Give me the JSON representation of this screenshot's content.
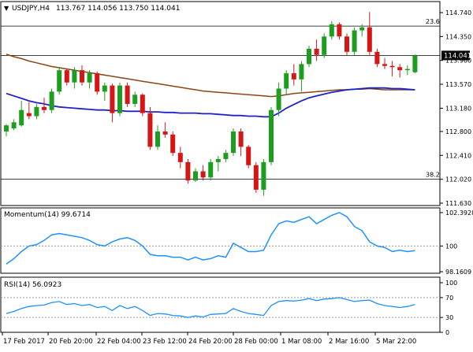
{
  "header": {
    "symbol_label": "USDJPY,H4",
    "ohlc_label": "113.767 114.056 113.750 114.041"
  },
  "momentum_label": "Momentum(14) 99.6714",
  "rsi_label": "RSI(14) 56.0923",
  "colors": {
    "bull": "#1e9e1e",
    "bear": "#d41616",
    "ma_fast": "#1e22c8",
    "ma_slow": "#8b4513",
    "momentum": "#1e90ff",
    "rsi": "#1e90ff",
    "grid": "#000000"
  },
  "chart_data": [
    {
      "type": "candlestick",
      "ylim": [
        111.63,
        114.74
      ],
      "y_ticks": [
        "114.740",
        "114.350",
        "113.960",
        "113.570",
        "113.180",
        "112.800",
        "112.410",
        "112.020",
        "111.630"
      ],
      "current_price": "114.041",
      "current_price_value": 114.041,
      "fibo_levels": [
        {
          "label": "23.6",
          "value": 114.52
        },
        {
          "label": "38.2",
          "value": 112.02
        }
      ],
      "x_labels": [
        "17 Feb 2017",
        "20 Feb 20:00",
        "22 Feb 04:00",
        "23 Feb 12:00",
        "24 Feb 20:00",
        "28 Feb 00:00",
        "1 Mar 08:00",
        "2 Mar 16:00",
        "5 Mar 22:00"
      ],
      "candles": [
        [
          112.8,
          112.92,
          112.72,
          112.9
        ],
        [
          112.85,
          113.0,
          112.82,
          112.95
        ],
        [
          112.9,
          113.3,
          112.88,
          113.15
        ],
        [
          113.1,
          113.28,
          113.0,
          113.05
        ],
        [
          113.05,
          113.25,
          113.0,
          113.2
        ],
        [
          113.2,
          113.35,
          113.1,
          113.15
        ],
        [
          113.15,
          113.5,
          113.1,
          113.45
        ],
        [
          113.45,
          113.85,
          113.4,
          113.8
        ],
        [
          113.8,
          113.82,
          113.55,
          113.6
        ],
        [
          113.6,
          113.85,
          113.5,
          113.8
        ],
        [
          113.8,
          113.88,
          113.55,
          113.6
        ],
        [
          113.6,
          113.8,
          113.5,
          113.75
        ],
        [
          113.75,
          113.78,
          113.4,
          113.45
        ],
        [
          113.45,
          113.6,
          113.3,
          113.55
        ],
        [
          113.55,
          113.58,
          112.95,
          113.1
        ],
        [
          113.1,
          113.6,
          113.05,
          113.55
        ],
        [
          113.55,
          113.6,
          113.2,
          113.25
        ],
        [
          113.25,
          113.45,
          113.2,
          113.4
        ],
        [
          113.4,
          113.42,
          113.05,
          113.1
        ],
        [
          113.1,
          113.2,
          112.5,
          112.55
        ],
        [
          112.55,
          112.9,
          112.5,
          112.8
        ],
        [
          112.8,
          112.95,
          112.7,
          112.75
        ],
        [
          112.75,
          112.8,
          112.4,
          112.45
        ],
        [
          112.45,
          112.55,
          112.2,
          112.3
        ],
        [
          112.3,
          112.35,
          111.95,
          112.0
        ],
        [
          112.0,
          112.2,
          111.98,
          112.15
        ],
        [
          112.15,
          112.25,
          112.0,
          112.05
        ],
        [
          112.05,
          112.35,
          112.0,
          112.3
        ],
        [
          112.3,
          112.4,
          112.15,
          112.35
        ],
        [
          112.35,
          112.5,
          112.3,
          112.45
        ],
        [
          112.45,
          112.85,
          112.4,
          112.8
        ],
        [
          112.8,
          112.85,
          112.4,
          112.55
        ],
        [
          112.55,
          112.58,
          112.2,
          112.25
        ],
        [
          112.25,
          112.3,
          111.8,
          111.85
        ],
        [
          111.85,
          112.35,
          111.75,
          112.3
        ],
        [
          112.3,
          113.2,
          112.25,
          113.15
        ],
        [
          113.15,
          113.6,
          113.05,
          113.5
        ],
        [
          113.5,
          113.8,
          113.4,
          113.75
        ],
        [
          113.75,
          113.9,
          113.55,
          113.65
        ],
        [
          113.65,
          113.95,
          113.45,
          113.9
        ],
        [
          113.9,
          114.2,
          113.85,
          114.15
        ],
        [
          114.15,
          114.3,
          113.95,
          114.05
        ],
        [
          114.05,
          114.4,
          114.0,
          114.35
        ],
        [
          114.35,
          114.6,
          114.3,
          114.55
        ],
        [
          114.55,
          114.58,
          114.3,
          114.35
        ],
        [
          114.35,
          114.4,
          114.05,
          114.1
        ],
        [
          114.1,
          114.5,
          114.05,
          114.45
        ],
        [
          114.45,
          114.55,
          114.35,
          114.5
        ],
        [
          114.5,
          114.75,
          114.05,
          114.1
        ],
        [
          114.1,
          114.15,
          113.85,
          113.9
        ],
        [
          113.9,
          114.0,
          113.82,
          113.87
        ],
        [
          113.87,
          113.95,
          113.7,
          113.85
        ],
        [
          113.85,
          113.9,
          113.68,
          113.8
        ],
        [
          113.8,
          113.88,
          113.72,
          113.82
        ],
        [
          113.767,
          114.056,
          113.75,
          114.041
        ]
      ],
      "ma_slow": [
        114.06,
        114.02,
        113.99,
        113.95,
        113.92,
        113.89,
        113.86,
        113.84,
        113.82,
        113.8,
        113.78,
        113.76,
        113.74,
        113.72,
        113.7,
        113.68,
        113.66,
        113.64,
        113.62,
        113.6,
        113.58,
        113.56,
        113.54,
        113.52,
        113.5,
        113.48,
        113.46,
        113.45,
        113.44,
        113.43,
        113.42,
        113.41,
        113.4,
        113.39,
        113.38,
        113.37,
        113.38,
        113.4,
        113.42,
        113.43,
        113.44,
        113.45,
        113.46,
        113.47,
        113.48,
        113.48,
        113.49,
        113.49,
        113.5,
        113.49,
        113.48,
        113.48,
        113.48,
        113.48,
        113.48
      ],
      "ma_fast": [
        113.42,
        113.38,
        113.34,
        113.3,
        113.27,
        113.25,
        113.22,
        113.2,
        113.19,
        113.18,
        113.17,
        113.16,
        113.15,
        113.15,
        113.14,
        113.14,
        113.13,
        113.13,
        113.13,
        113.12,
        113.12,
        113.11,
        113.11,
        113.1,
        113.1,
        113.1,
        113.09,
        113.09,
        113.08,
        113.07,
        113.06,
        113.06,
        113.05,
        113.05,
        113.04,
        113.04,
        113.1,
        113.18,
        113.24,
        113.3,
        113.35,
        113.38,
        113.41,
        113.44,
        113.46,
        113.48,
        113.49,
        113.5,
        113.51,
        113.51,
        113.51,
        113.5,
        113.5,
        113.49,
        113.48
      ]
    },
    {
      "type": "line",
      "ylim": [
        98.1609,
        102.3928
      ],
      "y_ticks": [
        "102.3928",
        "100",
        "98.1609"
      ],
      "reference_value": 100,
      "values": [
        98.7,
        99.1,
        99.6,
        100.0,
        100.1,
        100.4,
        100.8,
        100.9,
        100.8,
        100.7,
        100.6,
        100.4,
        100.1,
        100.0,
        100.3,
        100.5,
        100.6,
        100.4,
        100.0,
        99.4,
        99.3,
        99.3,
        99.2,
        99.2,
        99.0,
        99.2,
        99.0,
        99.1,
        99.3,
        99.2,
        100.2,
        99.9,
        99.6,
        99.6,
        99.7,
        100.8,
        101.6,
        101.8,
        101.7,
        101.9,
        102.1,
        101.6,
        101.9,
        102.2,
        102.4,
        102.1,
        101.4,
        101.1,
        100.3,
        100.0,
        99.9,
        99.6,
        99.7,
        99.6,
        99.67
      ]
    },
    {
      "type": "line",
      "ylim": [
        0,
        100
      ],
      "y_ticks": [
        "100",
        "70",
        "30",
        "0"
      ],
      "reference_levels": [
        70,
        30
      ],
      "values": [
        38,
        42,
        48,
        52,
        54,
        55,
        60,
        62,
        56,
        58,
        54,
        56,
        50,
        52,
        44,
        54,
        48,
        52,
        44,
        34,
        38,
        37,
        34,
        33,
        30,
        33,
        31,
        36,
        37,
        38,
        48,
        42,
        38,
        36,
        34,
        54,
        62,
        64,
        63,
        65,
        68,
        64,
        67,
        68,
        70,
        66,
        62,
        64,
        65,
        58,
        54,
        52,
        50,
        52,
        56.09
      ]
    }
  ]
}
